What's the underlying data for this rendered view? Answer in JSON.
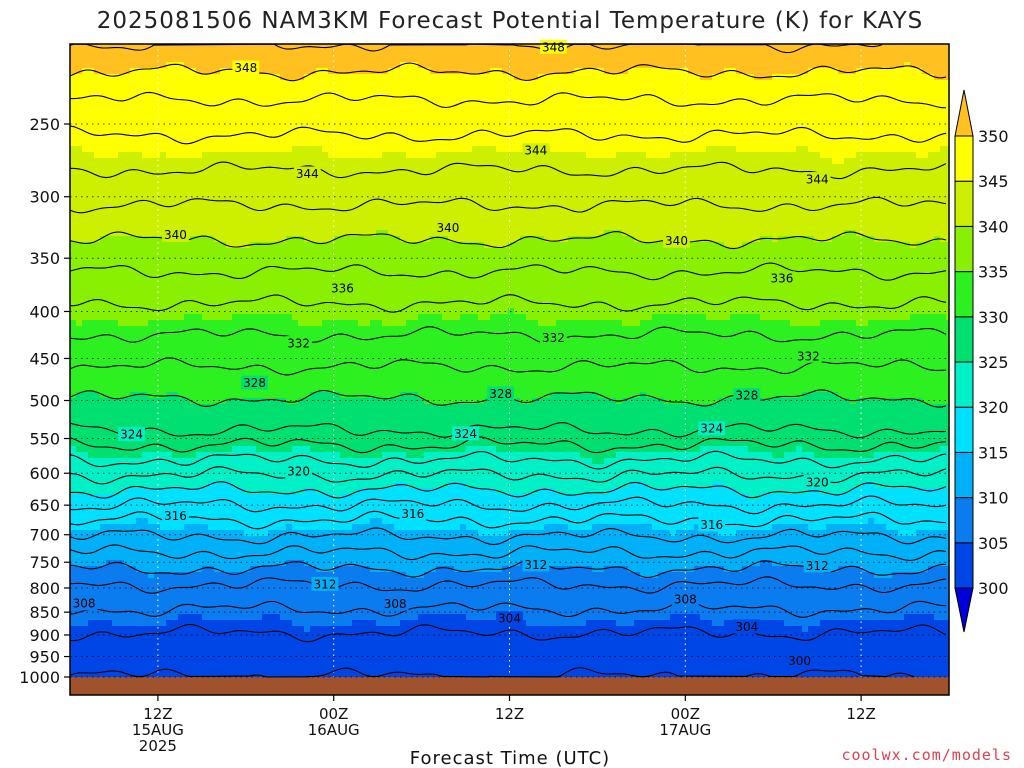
{
  "chart_data": {
    "type": "heatmap",
    "title": "2025081506 NAM3KM Forecast Potential Temperature (K) for KAYS",
    "xlabel": "Forecast Time (UTC)",
    "ylabel": "",
    "watermark": "coolwx.com/models",
    "y_axis": {
      "scale": "log-pressure",
      "ylim": [
        1000,
        200
      ],
      "ticks": [
        250,
        300,
        350,
        400,
        450,
        500,
        550,
        600,
        650,
        700,
        750,
        800,
        850,
        900,
        950,
        1000
      ]
    },
    "x_axis": {
      "range_hours": [
        1,
        51
      ],
      "ticks": [
        {
          "hour": 6,
          "lines": [
            "12Z",
            "15AUG",
            "2025"
          ]
        },
        {
          "hour": 16,
          "lines": [
            "00Z",
            "16AUG"
          ]
        },
        {
          "hour": 26,
          "lines": [
            "12Z"
          ]
        },
        {
          "hour": 36,
          "lines": [
            "00Z",
            "17AUG"
          ]
        },
        {
          "hour": 46,
          "lines": [
            "12Z"
          ]
        }
      ]
    },
    "grid": true,
    "colorbar": {
      "levels": [
        300,
        305,
        310,
        315,
        320,
        325,
        330,
        335,
        340,
        345,
        350
      ],
      "colors": [
        "#0000d8",
        "#0046e6",
        "#0a7cf0",
        "#00b0f8",
        "#00e0ff",
        "#00f0c8",
        "#00e070",
        "#2cf020",
        "#88f000",
        "#ccf000",
        "#ffff00",
        "#ffc020"
      ],
      "extend": "both"
    },
    "ground_color": "#a0522d",
    "contour_interval": 2,
    "contour_labels": [
      {
        "value": 348,
        "hour": 11.0,
        "p": 217
      },
      {
        "value": 348,
        "hour": 28.5,
        "p": 206
      },
      {
        "value": 344,
        "hour": 14.5,
        "p": 283
      },
      {
        "value": 344,
        "hour": 27.5,
        "p": 267
      },
      {
        "value": 344,
        "hour": 43.5,
        "p": 287
      },
      {
        "value": 340,
        "hour": 7.0,
        "p": 330
      },
      {
        "value": 340,
        "hour": 22.5,
        "p": 324
      },
      {
        "value": 340,
        "hour": 35.5,
        "p": 335
      },
      {
        "value": 336,
        "hour": 16.5,
        "p": 377
      },
      {
        "value": 336,
        "hour": 41.5,
        "p": 368
      },
      {
        "value": 332,
        "hour": 14.0,
        "p": 433
      },
      {
        "value": 332,
        "hour": 28.5,
        "p": 427
      },
      {
        "value": 332,
        "hour": 43.0,
        "p": 447
      },
      {
        "value": 328,
        "hour": 11.5,
        "p": 478
      },
      {
        "value": 328,
        "hour": 25.5,
        "p": 491
      },
      {
        "value": 328,
        "hour": 39.5,
        "p": 493
      },
      {
        "value": 324,
        "hour": 4.5,
        "p": 544
      },
      {
        "value": 324,
        "hour": 23.5,
        "p": 543
      },
      {
        "value": 324,
        "hour": 37.5,
        "p": 536
      },
      {
        "value": 320,
        "hour": 14.0,
        "p": 597
      },
      {
        "value": 320,
        "hour": 43.5,
        "p": 613
      },
      {
        "value": 316,
        "hour": 7.0,
        "p": 667
      },
      {
        "value": 316,
        "hour": 20.5,
        "p": 664
      },
      {
        "value": 316,
        "hour": 37.5,
        "p": 682
      },
      {
        "value": 312,
        "hour": 27.5,
        "p": 754
      },
      {
        "value": 312,
        "hour": 15.5,
        "p": 792
      },
      {
        "value": 312,
        "hour": 43.5,
        "p": 756
      },
      {
        "value": 308,
        "hour": 1.8,
        "p": 831
      },
      {
        "value": 308,
        "hour": 19.5,
        "p": 832
      },
      {
        "value": 308,
        "hour": 36.0,
        "p": 822
      },
      {
        "value": 304,
        "hour": 26.0,
        "p": 863
      },
      {
        "value": 304,
        "hour": 39.5,
        "p": 881
      },
      {
        "value": 300,
        "hour": 42.5,
        "p": 960
      }
    ]
  }
}
